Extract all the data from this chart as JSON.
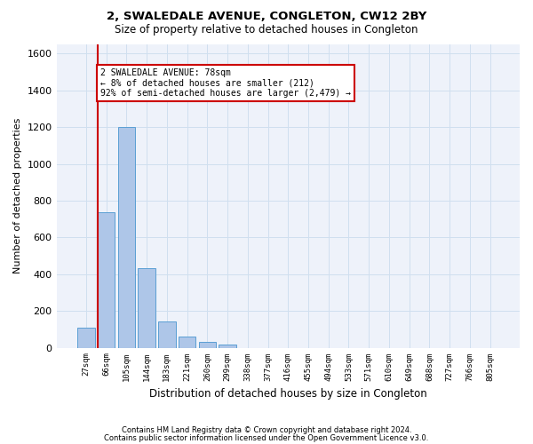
{
  "title": "2, SWALEDALE AVENUE, CONGLETON, CW12 2BY",
  "subtitle": "Size of property relative to detached houses in Congleton",
  "xlabel": "Distribution of detached houses by size in Congleton",
  "ylabel": "Number of detached properties",
  "bar_categories": [
    "27sqm",
    "66sqm",
    "105sqm",
    "144sqm",
    "183sqm",
    "221sqm",
    "260sqm",
    "299sqm",
    "338sqm",
    "377sqm",
    "416sqm",
    "455sqm",
    "494sqm",
    "533sqm",
    "571sqm",
    "610sqm",
    "649sqm",
    "688sqm",
    "727sqm",
    "766sqm",
    "805sqm"
  ],
  "bar_values": [
    110,
    735,
    1200,
    435,
    145,
    60,
    30,
    18,
    0,
    0,
    0,
    0,
    0,
    0,
    0,
    0,
    0,
    0,
    0,
    0,
    0
  ],
  "bar_color": "#aec6e8",
  "bar_edge_color": "#5a9fd4",
  "ylim": [
    0,
    1650
  ],
  "yticks": [
    0,
    200,
    400,
    600,
    800,
    1000,
    1200,
    1400,
    1600
  ],
  "property_line_color": "#cc0000",
  "annotation_text": "2 SWALEDALE AVENUE: 78sqm\n← 8% of detached houses are smaller (212)\n92% of semi-detached houses are larger (2,479) →",
  "annotation_box_color": "#ffffff",
  "annotation_box_edgecolor": "#cc0000",
  "grid_color": "#d0dfef",
  "background_color": "#eef2fa",
  "footer_line1": "Contains HM Land Registry data © Crown copyright and database right 2024.",
  "footer_line2": "Contains public sector information licensed under the Open Government Licence v3.0."
}
